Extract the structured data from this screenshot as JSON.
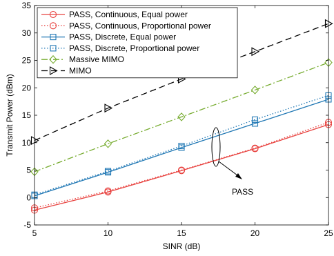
{
  "chart_data": {
    "type": "line",
    "xlabel": "SINR (dB)",
    "ylabel": "Transmit Power (dBm)",
    "xlim": [
      5,
      25
    ],
    "ylim": [
      -5,
      35
    ],
    "xticks": [
      5,
      10,
      15,
      20,
      25
    ],
    "yticks": [
      -5,
      0,
      5,
      10,
      15,
      20,
      25,
      30,
      35
    ],
    "grid": false,
    "legend_position": "top-left",
    "x": [
      5,
      10,
      15,
      20,
      25
    ],
    "series": [
      {
        "name": "PASS, Continuous, Equal power",
        "values": [
          -2.3,
          1.0,
          4.9,
          8.9,
          13.3
        ],
        "color": "#e8423f",
        "dash": "solid",
        "marker": "circle"
      },
      {
        "name": "PASS, Continuous, Proportional power",
        "values": [
          -1.9,
          1.2,
          5.0,
          9.0,
          13.7
        ],
        "color": "#e8423f",
        "dash": "dotted",
        "marker": "circle"
      },
      {
        "name": "PASS, Discrete, Equal power",
        "values": [
          0.3,
          4.6,
          9.1,
          13.5,
          17.9
        ],
        "color": "#1f77b4",
        "dash": "solid",
        "marker": "square"
      },
      {
        "name": "PASS, Discrete, Proportional power",
        "values": [
          0.5,
          4.8,
          9.4,
          14.2,
          18.6
        ],
        "color": "#1f77b4",
        "dash": "dotted",
        "marker": "square"
      },
      {
        "name": "Massive MIMO",
        "values": [
          4.7,
          9.8,
          14.7,
          19.6,
          24.6
        ],
        "color": "#77ac30",
        "dash": "dashdot",
        "marker": "diamond"
      },
      {
        "name": "MIMO",
        "values": [
          10.4,
          16.3,
          21.6,
          26.6,
          31.7
        ],
        "color": "#000000",
        "dash": "dashed",
        "marker": "triangle-right"
      }
    ],
    "annotation": {
      "text": "PASS"
    }
  }
}
